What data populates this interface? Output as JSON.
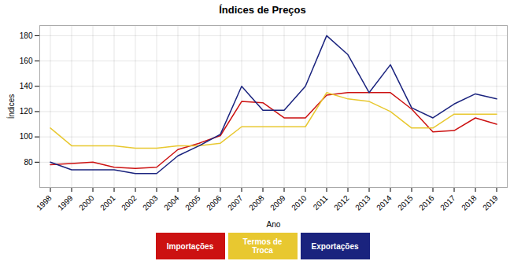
{
  "chart_data": {
    "type": "line",
    "title": "Índices de Preços",
    "xlabel": "Ano",
    "ylabel": "Índices",
    "x": [
      1998,
      1999,
      2000,
      2001,
      2002,
      2003,
      2004,
      2005,
      2006,
      2007,
      2008,
      2009,
      2010,
      2011,
      2012,
      2013,
      2014,
      2015,
      2016,
      2017,
      2018,
      2019
    ],
    "series": [
      {
        "name": "Importações",
        "color": "#cc1111",
        "values": [
          78,
          79,
          80,
          76,
          75,
          76,
          90,
          95,
          101,
          128,
          127,
          115,
          115,
          133,
          135,
          135,
          135,
          122,
          104,
          105,
          115,
          110
        ]
      },
      {
        "name": "Termos de\nTroca",
        "color": "#e8c830",
        "values": [
          107,
          93,
          93,
          93,
          91,
          91,
          93,
          93,
          95,
          108,
          108,
          108,
          108,
          135,
          130,
          128,
          120,
          107,
          107,
          118,
          118,
          118
        ]
      },
      {
        "name": "Exportações",
        "color": "#1a237e",
        "values": [
          80,
          74,
          74,
          74,
          71,
          71,
          85,
          93,
          102,
          140,
          121,
          121,
          140,
          180,
          165,
          135,
          157,
          123,
          115,
          126,
          134,
          130
        ]
      }
    ],
    "xlim": [
      1997.5,
      2019.5
    ],
    "xticks": [
      1998,
      1999,
      2000,
      2001,
      2002,
      2003,
      2004,
      2005,
      2006,
      2007,
      2008,
      2009,
      2010,
      2011,
      2012,
      2013,
      2014,
      2015,
      2016,
      2017,
      2018,
      2019
    ],
    "ylim": [
      60,
      188
    ],
    "yticks": [
      80,
      100,
      120,
      140,
      160,
      180
    ],
    "grid": true,
    "legend": "bottom"
  }
}
